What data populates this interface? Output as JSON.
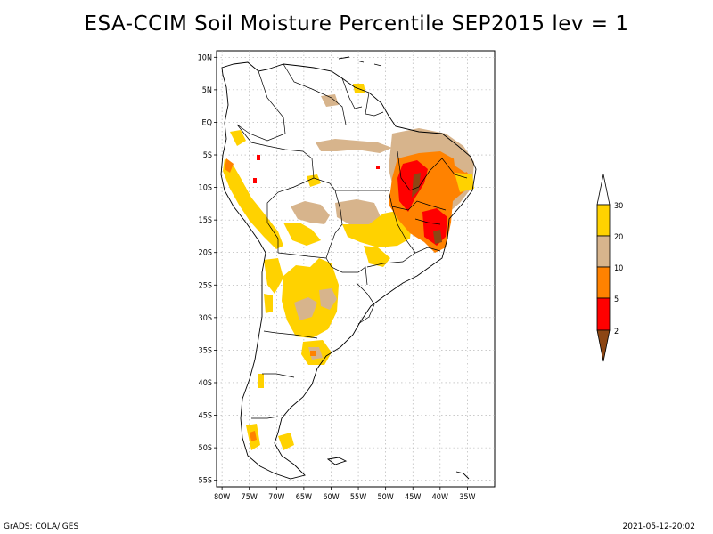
{
  "title": "ESA-CCIM Soil Moisture Percentile SEP2015 lev = 1",
  "footer": {
    "left": "GrADS: COLA/IGES",
    "right": "2021-05-12-20:02"
  },
  "map": {
    "lon_range": [
      -81,
      -30
    ],
    "lat_range": [
      -56,
      11
    ],
    "lat_ticks": [
      "10N",
      "5N",
      "EQ",
      "5S",
      "10S",
      "15S",
      "20S",
      "25S",
      "30S",
      "35S",
      "40S",
      "45S",
      "50S",
      "55S"
    ],
    "lon_ticks": [
      "80W",
      "75W",
      "70W",
      "65W",
      "60W",
      "55W",
      "50W",
      "45W",
      "40W",
      "35W"
    ]
  },
  "colorbar": {
    "labels": [
      "30",
      "20",
      "10",
      "5",
      "2"
    ],
    "colors": {
      "above_30": "#ffffff",
      "20_30": "#ffd200",
      "10_20": "#d7b48c",
      "5_10": "#ff8200",
      "2_5": "#ff0000",
      "below_2": "#8c4614"
    }
  },
  "regions": [
    {
      "name": "ne-brazil-dry",
      "category": "2_5"
    },
    {
      "name": "ne-brazil-orange",
      "category": "5_10"
    },
    {
      "name": "central-brazil-yellow",
      "category": "20_30"
    },
    {
      "name": "bolivia-tan",
      "category": "10_20"
    },
    {
      "name": "argentina-yellow",
      "category": "20_30"
    },
    {
      "name": "patagonia-yellow",
      "category": "20_30"
    }
  ]
}
